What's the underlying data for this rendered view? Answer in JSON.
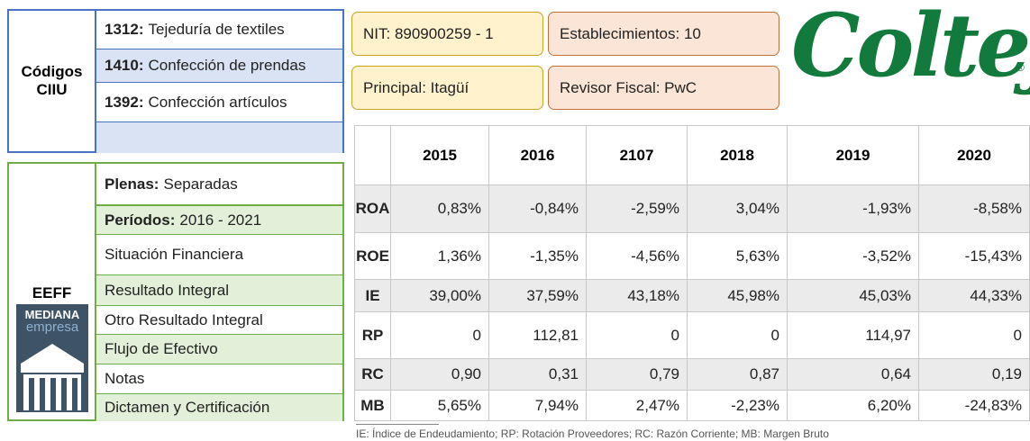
{
  "ciiu": {
    "label": "Códigos CIIU",
    "items": [
      {
        "code": "1312:",
        "name": "Tejeduría de textiles"
      },
      {
        "code": "1410:",
        "name": "Confección de prendas"
      },
      {
        "code": "1392:",
        "name": "Confección artículos"
      }
    ]
  },
  "eeff": {
    "label": "EEFF",
    "logo": {
      "line1": "MEDIANA",
      "line2": "empresa"
    },
    "items": [
      {
        "bold": "Plenas:",
        "text": "Separadas"
      },
      {
        "bold": "Períodos:",
        "text": "2016 - 2021"
      },
      {
        "text": "Situación Financiera"
      },
      {
        "text": "Resultado Integral"
      },
      {
        "text": "Otro Resultado Integral"
      },
      {
        "text": "Flujo de Efectivo"
      },
      {
        "text": "Notas"
      },
      {
        "text": "Dictamen y Certificación"
      }
    ]
  },
  "info": [
    "NIT: 890900259 - 1",
    "Establecimientos: 10",
    "Principal: Itagüí",
    "Revisor Fiscal: PwC"
  ],
  "logo": {
    "text": "Coltejer",
    "mark": "®"
  },
  "table": {
    "columns": [
      "2015",
      "2016",
      "2107",
      "2018",
      "2019",
      "2020"
    ],
    "rows": [
      {
        "label": "ROA",
        "values": [
          "0,83%",
          "-0,84%",
          "-2,59%",
          "3,04%",
          "-1,93%",
          "-8,58%"
        ]
      },
      {
        "label": "ROE",
        "values": [
          "1,36%",
          "-1,35%",
          "-4,56%",
          "5,63%",
          "-3,52%",
          "-15,43%"
        ]
      },
      {
        "label": "IE",
        "values": [
          "39,00%",
          "37,59%",
          "43,18%",
          "45,98%",
          "45,03%",
          "44,33%"
        ]
      },
      {
        "label": "RP",
        "values": [
          "0",
          "112,81",
          "0",
          "0",
          "114,97",
          "0"
        ]
      },
      {
        "label": "RC",
        "values": [
          "0,90",
          "0,31",
          "0,79",
          "0,87",
          "0,64",
          "0,19"
        ]
      },
      {
        "label": "MB",
        "values": [
          "5,65%",
          "7,94%",
          "2,47%",
          "-2,23%",
          "6,20%",
          "-24,83%"
        ]
      }
    ]
  },
  "footnote": "IE: Índice de Endeudamiento; RP: Rotación Proveedores; RC: Razón Corriente; MB: Margen Bruto"
}
